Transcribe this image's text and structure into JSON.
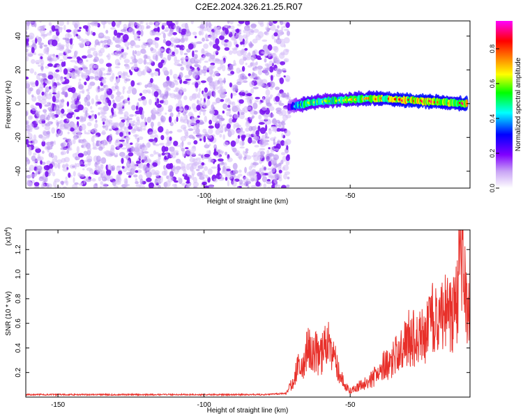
{
  "chart_data": [
    {
      "type": "heatmap",
      "title": "C2E2.2024.326.21.25.R07",
      "xlabel": "Height of straight line (km)",
      "ylabel": "Frequency (Hz)",
      "xlim": [
        -161,
        -9
      ],
      "ylim": [
        -50,
        49
      ],
      "x_ticks": [
        -150,
        -100,
        -50
      ],
      "y_ticks": [
        -40,
        -20,
        0,
        20,
        40
      ],
      "x_tick_labels": [
        "-150",
        "-100",
        "-50"
      ],
      "y_tick_labels": [
        "-40",
        "-20",
        "0",
        "20",
        "40"
      ],
      "noise_region_x": [
        -161,
        -71
      ],
      "signal_track": {
        "x": [
          -71,
          -65,
          -60,
          -55,
          -50,
          -45,
          -40,
          -35,
          -30,
          -25,
          -20,
          -15,
          -10
        ],
        "frequency": [
          -2,
          0,
          1.5,
          2,
          2.5,
          3,
          3,
          2.5,
          2,
          1.5,
          1,
          0.5,
          0
        ],
        "amplitude": [
          0.3,
          0.7,
          0.6,
          0.65,
          0.7,
          0.75,
          0.8,
          0.85,
          0.9,
          0.9,
          0.85,
          0.8,
          0.9
        ]
      },
      "colorbar": {
        "label": "Normalized spectral amplitude",
        "range": [
          0,
          0.96
        ],
        "ticks": [
          0,
          0.2,
          0.4,
          0.6,
          0.8
        ],
        "tick_labels": [
          "0.0",
          "0.2",
          "0.4",
          "0.6",
          "0.8"
        ],
        "colors": [
          "#ffffff",
          "#8000ff",
          "#0000ff",
          "#00ffff",
          "#00ff00",
          "#ffff00",
          "#ff8000",
          "#ff0000",
          "#ff00ff"
        ]
      },
      "grid": false
    },
    {
      "type": "line",
      "xlabel": "Height of straight line (km)",
      "ylabel": "SNR (10 * v/v)",
      "y_multiplier_label": "(x10",
      "y_multiplier_exp": "4",
      "y_multiplier_close": ")",
      "xlim": [
        -161,
        -9
      ],
      "ylim": [
        0,
        1.36
      ],
      "x_ticks": [
        -150,
        -100,
        -50
      ],
      "y_ticks": [
        0.2,
        0.4,
        0.6,
        0.8,
        1.0,
        1.2
      ],
      "x_tick_labels": [
        "-150",
        "-100",
        "-50"
      ],
      "y_tick_labels": [
        "0.2",
        "0.4",
        "0.6",
        "0.8",
        "1.0",
        "1.2"
      ],
      "color": "#e8302a",
      "series": [
        {
          "x": [
            -161,
            -150,
            -140,
            -130,
            -120,
            -110,
            -100,
            -90,
            -80,
            -72,
            -70,
            -68,
            -66,
            -64,
            -62,
            -60,
            -58,
            -56,
            -54,
            -52,
            -50,
            -48,
            -46,
            -44,
            -42,
            -40,
            -38,
            -36,
            -34,
            -32,
            -30,
            -28,
            -26,
            -24,
            -22,
            -20,
            -18,
            -16,
            -14,
            -12,
            -10,
            -9
          ],
          "y": [
            0.02,
            0.02,
            0.02,
            0.02,
            0.02,
            0.02,
            0.02,
            0.02,
            0.02,
            0.03,
            0.12,
            0.25,
            0.33,
            0.45,
            0.4,
            0.35,
            0.52,
            0.4,
            0.25,
            0.1,
            0.06,
            0.08,
            0.12,
            0.12,
            0.18,
            0.22,
            0.3,
            0.32,
            0.38,
            0.42,
            0.55,
            0.52,
            0.6,
            0.55,
            0.72,
            0.68,
            0.75,
            0.72,
            0.8,
            1.3,
            0.85,
            0.95
          ]
        }
      ],
      "grid": false
    }
  ]
}
